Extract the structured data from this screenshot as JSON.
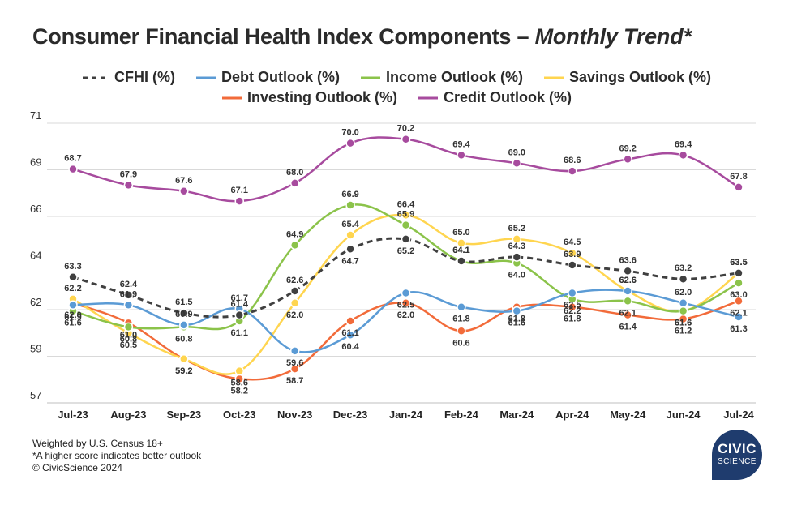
{
  "title": {
    "main": "Consumer Financial Health Index Components –",
    "sub": "Monthly Trend*"
  },
  "colors": {
    "cfhi": "#404040",
    "debt": "#5b9bd5",
    "income": "#8bc34a",
    "savings": "#ffd54f",
    "investing": "#f26b3a",
    "credit": "#a74b9e",
    "grid": "#d9d9d9"
  },
  "footnote": {
    "line1": "Weighted by U.S. Census 18+",
    "line2": "*A higher score indicates better outlook",
    "line3": "© CivicScience 2024"
  },
  "logo": {
    "line1": "CIVIC",
    "line2": "SCIENCE"
  },
  "chart_data": {
    "type": "line",
    "title": "Consumer Financial Health Index Components – Monthly Trend*",
    "categories": [
      "Jul-23",
      "Aug-23",
      "Sep-23",
      "Oct-23",
      "Nov-23",
      "Dec-23",
      "Jan-24",
      "Feb-24",
      "Mar-24",
      "Apr-24",
      "May-24",
      "Jun-24",
      "Jul-24"
    ],
    "y_ticks": [
      "57",
      "59",
      "62",
      "64",
      "66",
      "69",
      "71"
    ],
    "ylim": [
      57,
      71
    ],
    "grid": true,
    "legend_placement": "top-center",
    "series": [
      {
        "key": "cfhi",
        "name": "CFHI (%)",
        "dashed": true,
        "values": [
          63.3,
          62.4,
          61.5,
          61.4,
          62.6,
          64.7,
          65.2,
          64.1,
          64.3,
          63.9,
          63.6,
          63.2,
          63.5
        ],
        "labels": [
          "63.3",
          "62.4",
          "61.5",
          "61.4",
          "62.6",
          "64.7",
          "65.2",
          "64.1",
          "64.3",
          "63.9",
          "63.6",
          "63.2",
          "63.5"
        ]
      },
      {
        "key": "debt",
        "name": "Debt Outlook (%)",
        "values": [
          61.9,
          61.9,
          60.9,
          61.7,
          59.6,
          60.4,
          62.5,
          61.8,
          61.6,
          62.5,
          62.6,
          62.0,
          61.3
        ],
        "labels": [
          "61.9",
          "61.9",
          "60.9",
          "61.7",
          "59.6",
          "60.4",
          "62.5",
          "61.8",
          "61.6",
          "62.5",
          "62.6",
          "62.0",
          "61.3"
        ]
      },
      {
        "key": "income",
        "name": "Income Outlook (%)",
        "values": [
          61.6,
          60.8,
          60.8,
          61.1,
          64.9,
          66.9,
          65.9,
          64.1,
          64.0,
          62.2,
          62.1,
          61.6,
          63.0
        ],
        "labels": [
          "61.6",
          "60.8",
          "60.8",
          "61.1",
          "64.9",
          "66.9",
          "65.9",
          "64.1",
          "64.0",
          "62.2",
          "62.1",
          "61.6",
          "63.0"
        ]
      },
      {
        "key": "savings",
        "name": "Savings Outlook (%)",
        "values": [
          62.2,
          60.5,
          59.2,
          58.6,
          62.0,
          65.4,
          66.4,
          65.0,
          65.2,
          64.5,
          62.6,
          61.6,
          63.5
        ],
        "labels": [
          "62.2",
          "60.5",
          "59.2",
          "58.6",
          "62.0",
          "65.4",
          "66.4",
          "65.0",
          "65.2",
          "64.5",
          "62.6",
          "61.6",
          "63.5"
        ]
      },
      {
        "key": "investing",
        "name": "Investing Outlook (%)",
        "values": [
          62.0,
          61.0,
          59.2,
          58.2,
          58.7,
          61.1,
          62.0,
          60.6,
          61.8,
          61.8,
          61.4,
          61.2,
          62.1
        ],
        "labels": [
          "62.0",
          "61.0",
          "59.2",
          "58.2",
          "58.7",
          "61.1",
          "62.0",
          "60.6",
          "61.8",
          "61.8",
          "61.4",
          "61.2",
          "62.1"
        ]
      },
      {
        "key": "credit",
        "name": "Credit Outlook (%)",
        "values": [
          68.7,
          67.9,
          67.6,
          67.1,
          68.0,
          70.0,
          70.2,
          69.4,
          69.0,
          68.6,
          69.2,
          69.4,
          67.8
        ],
        "labels": [
          "68.7",
          "67.9",
          "67.6",
          "67.1",
          "68.0",
          "70.0",
          "70.2",
          "69.4",
          "69.0",
          "68.6",
          "69.2",
          "69.4",
          "67.8"
        ]
      }
    ]
  }
}
